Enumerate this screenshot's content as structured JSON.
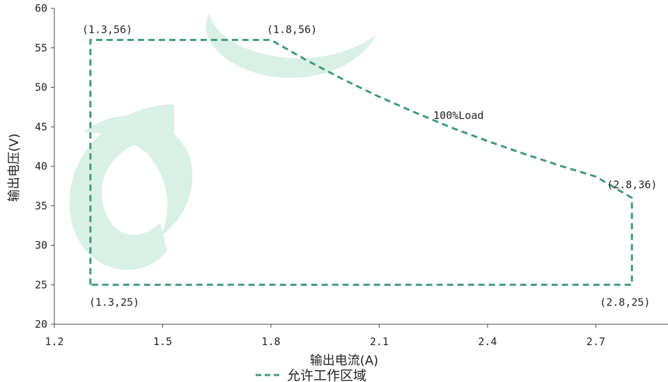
{
  "chart_data": {
    "type": "line",
    "title": "",
    "xlabel": "输出电流(A)",
    "ylabel": "输出电压(V)",
    "xlim": [
      1.2,
      2.9
    ],
    "ylim": [
      20,
      60
    ],
    "x_ticks": [
      "1.2",
      "1.5",
      "1.8",
      "2.1",
      "2.4",
      "2.7"
    ],
    "y_ticks": [
      "20",
      "25",
      "30",
      "35",
      "40",
      "45",
      "50",
      "55",
      "60"
    ],
    "grid": false,
    "legend_position": "bottom",
    "series": [
      {
        "name": "允许工作区域",
        "color": "#3f9a78",
        "style": "dashed",
        "points": [
          {
            "x": 1.3,
            "y": 25
          },
          {
            "x": 1.3,
            "y": 56
          },
          {
            "x": 1.8,
            "y": 56
          },
          {
            "x": 1.9,
            "y": 53.4
          },
          {
            "x": 2.0,
            "y": 51.0
          },
          {
            "x": 2.1,
            "y": 48.8
          },
          {
            "x": 2.2,
            "y": 46.8
          },
          {
            "x": 2.3,
            "y": 44.9
          },
          {
            "x": 2.4,
            "y": 43.2
          },
          {
            "x": 2.5,
            "y": 41.6
          },
          {
            "x": 2.6,
            "y": 40.1
          },
          {
            "x": 2.7,
            "y": 38.7
          },
          {
            "x": 2.8,
            "y": 36
          },
          {
            "x": 2.8,
            "y": 25
          },
          {
            "x": 1.3,
            "y": 25
          }
        ]
      }
    ],
    "annotations": [
      {
        "text": "(1.3,56)",
        "x": 1.3,
        "y": 56,
        "anchor": "start",
        "dx": -12,
        "dy": -10
      },
      {
        "text": "(1.8,56)",
        "x": 1.8,
        "y": 56,
        "anchor": "start",
        "dx": -6,
        "dy": -10
      },
      {
        "text": "100%Load",
        "x": 2.25,
        "y": 46,
        "anchor": "start",
        "dx": 0,
        "dy": 0
      },
      {
        "text": "(2.8,36)",
        "x": 2.8,
        "y": 36,
        "anchor": "start",
        "dx": -36,
        "dy": -14
      },
      {
        "text": "(1.3,25)",
        "x": 1.3,
        "y": 25,
        "anchor": "start",
        "dx": -2,
        "dy": 30
      },
      {
        "text": "(2.8,25)",
        "x": 2.8,
        "y": 25,
        "anchor": "start",
        "dx": -46,
        "dy": 30
      }
    ]
  }
}
